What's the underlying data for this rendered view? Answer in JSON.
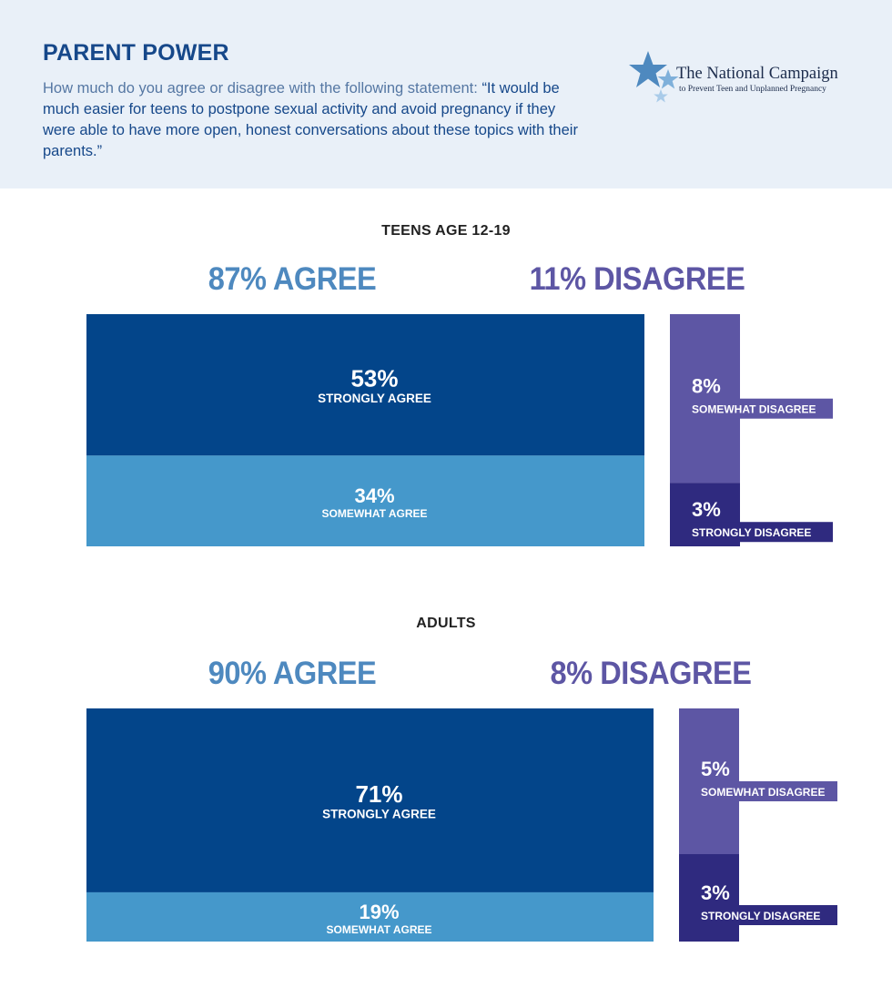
{
  "header": {
    "title": "PARENT POWER",
    "question_lead": "How much do you agree or disagree with the following statement: ",
    "question_quote": "“It would be much easier for teens to postpone sexual activity and avoid pregnancy if they were able to have more open, honest conversations about these topics with their parents.”"
  },
  "logo": {
    "name": "The National Campaign",
    "tagline": "to Prevent Teen and Unplanned Pregnancy",
    "icon": "star-logo-icon"
  },
  "colors": {
    "strongly_agree": "#03458a",
    "somewhat_agree": "#4598cb",
    "somewhat_disagree": "#5d56a4",
    "strongly_disagree": "#2f2a7f",
    "agree_text": "#4e89bf",
    "disagree_text": "#5d56a4"
  },
  "chart_data": [
    {
      "type": "bar",
      "title": "TEENS AGE 12-19",
      "agree_total": "87% AGREE",
      "disagree_total": "11% DISAGREE",
      "agree": [
        {
          "name": "STRONGLY AGREE",
          "value": 53,
          "label": "53%"
        },
        {
          "name": "SOMEWHAT AGREE",
          "value": 34,
          "label": "34%"
        }
      ],
      "disagree": [
        {
          "name": "SOMEWHAT DISAGREE",
          "value": 8,
          "label": "8%"
        },
        {
          "name": "STRONGLY DISAGREE",
          "value": 3,
          "label": "3%"
        }
      ]
    },
    {
      "type": "bar",
      "title": "ADULTS",
      "agree_total": "90% AGREE",
      "disagree_total": "8% DISAGREE",
      "agree": [
        {
          "name": "STRONGLY AGREE",
          "value": 71,
          "label": "71%"
        },
        {
          "name": "SOMEWHAT AGREE",
          "value": 19,
          "label": "19%"
        }
      ],
      "disagree": [
        {
          "name": "SOMEWHAT DISAGREE",
          "value": 5,
          "label": "5%"
        },
        {
          "name": "STRONGLY DISAGREE",
          "value": 3,
          "label": "3%"
        }
      ]
    }
  ]
}
